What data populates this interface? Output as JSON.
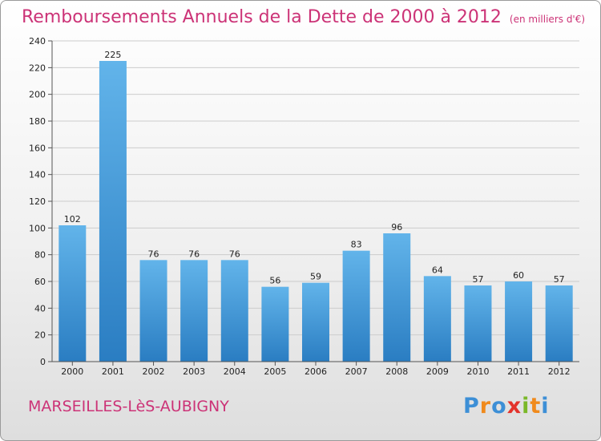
{
  "header": {
    "title": "Remboursements Annuels de la Dette de 2000 à 2012",
    "unit": "(en milliers d'€)"
  },
  "footer": {
    "city": "MARSEILLES-LèS-AUBIGNY"
  },
  "logo": {
    "text": "Proxiti",
    "letters": [
      {
        "char": "P",
        "color": "#3d8fd6"
      },
      {
        "char": "r",
        "color": "#f08a1c"
      },
      {
        "char": "o",
        "color": "#3d8fd6"
      },
      {
        "char": "x",
        "color": "#e3322b"
      },
      {
        "char": "i",
        "color": "#7ab829"
      },
      {
        "char": "t",
        "color": "#f08a1c"
      },
      {
        "char": "i",
        "color": "#3d8fd6"
      }
    ]
  },
  "colors": {
    "title": "#cc3377",
    "bar_top": "#62b4ea",
    "bar_bottom": "#2a7dc2",
    "grid": "#cccccc",
    "axis_text": "#222222"
  },
  "chart_data": {
    "type": "bar",
    "title": "Remboursements Annuels de la Dette de 2000 à 2012",
    "xlabel": "",
    "ylabel": "",
    "categories": [
      "2000",
      "2001",
      "2002",
      "2003",
      "2004",
      "2005",
      "2006",
      "2007",
      "2008",
      "2009",
      "2010",
      "2011",
      "2012"
    ],
    "values": [
      102,
      225,
      76,
      76,
      76,
      56,
      59,
      83,
      96,
      64,
      57,
      60,
      57
    ],
    "ylim": [
      0,
      240
    ],
    "yticks": [
      0,
      20,
      40,
      60,
      80,
      100,
      120,
      140,
      160,
      180,
      200,
      220,
      240
    ],
    "grid": true,
    "data_labels": true
  }
}
